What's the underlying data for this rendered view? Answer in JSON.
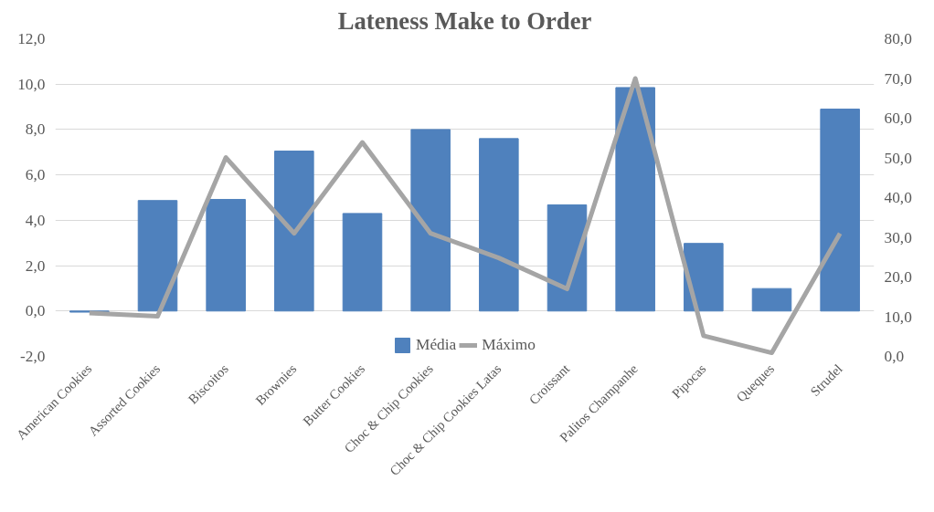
{
  "chart_data": {
    "type": "bar",
    "title": "Lateness Make to Order",
    "categories": [
      "American Cookies",
      "Assorted Cookies",
      "Biscoitos",
      "Brownies",
      "Butter Cookies",
      "Choc & Chip Cookies",
      "Choc & Chip Cookies Latas",
      "Croissant",
      "Palitos Champanhe",
      "Pipocas",
      "Queques",
      "Strudel"
    ],
    "series": [
      {
        "name": "Média",
        "color": "#4f81bd",
        "values": [
          -0.05,
          4.87,
          4.92,
          7.05,
          4.3,
          8.0,
          7.6,
          4.68,
          9.85,
          2.98,
          0.99,
          8.9
        ]
      },
      {
        "name": "Máximo",
        "type": "line",
        "axis": "y2",
        "color": "#a5a5a5",
        "values": [
          10.9,
          10.1,
          50.1,
          31.0,
          53.9,
          31.0,
          24.8,
          17.0,
          70.0,
          5.2,
          0.9,
          31.0
        ]
      }
    ],
    "ylim": [
      -2,
      12
    ],
    "yticks": [
      {
        "value": -2,
        "label": "-2,0"
      },
      {
        "value": 0,
        "label": "0,0"
      },
      {
        "value": 2,
        "label": "2,0"
      },
      {
        "value": 4,
        "label": "4,0"
      },
      {
        "value": 6,
        "label": "6,0"
      },
      {
        "value": 8,
        "label": "8,0"
      },
      {
        "value": 10,
        "label": "10,0"
      },
      {
        "value": 12,
        "label": "12,0"
      }
    ],
    "y2lim": [
      0,
      80
    ],
    "y2ticks": [
      {
        "value": 0,
        "label": "0,0"
      },
      {
        "value": 10,
        "label": "10,0"
      },
      {
        "value": 20,
        "label": "20,0"
      },
      {
        "value": 30,
        "label": "30,0"
      },
      {
        "value": 40,
        "label": "40,0"
      },
      {
        "value": 50,
        "label": "50,0"
      },
      {
        "value": 60,
        "label": "60,0"
      },
      {
        "value": 70,
        "label": "70,0"
      },
      {
        "value": 80,
        "label": "80,0"
      }
    ],
    "grid": "y",
    "legend": "bottom"
  }
}
